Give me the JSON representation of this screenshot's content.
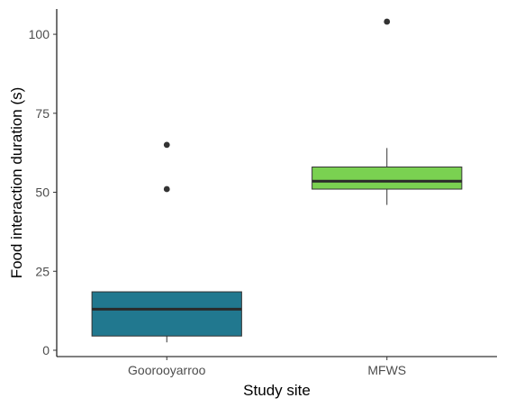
{
  "chart_data": {
    "type": "boxplot",
    "title": "",
    "xlabel": "Study site",
    "ylabel": "Food interaction duration (s)",
    "ylim": [
      -2,
      108
    ],
    "yticks": [
      0,
      25,
      50,
      75,
      100
    ],
    "yticks_labels": [
      "0",
      "25",
      "50",
      "75",
      "100"
    ],
    "grid": false,
    "legend": "none",
    "categories": [
      "Goorooyarroo",
      "MFWS"
    ],
    "boxes": [
      {
        "category": "Goorooyarroo",
        "color": "#21788f",
        "whisker_low": 2.5,
        "q1": 4.5,
        "median": 13,
        "q3": 18.5,
        "whisker_high": 18.5,
        "outliers": [
          51,
          65
        ]
      },
      {
        "category": "MFWS",
        "color": "#7ad151",
        "whisker_low": 46,
        "q1": 51,
        "median": 53.5,
        "q3": 58,
        "whisker_high": 64,
        "outliers": [
          104
        ]
      }
    ]
  }
}
